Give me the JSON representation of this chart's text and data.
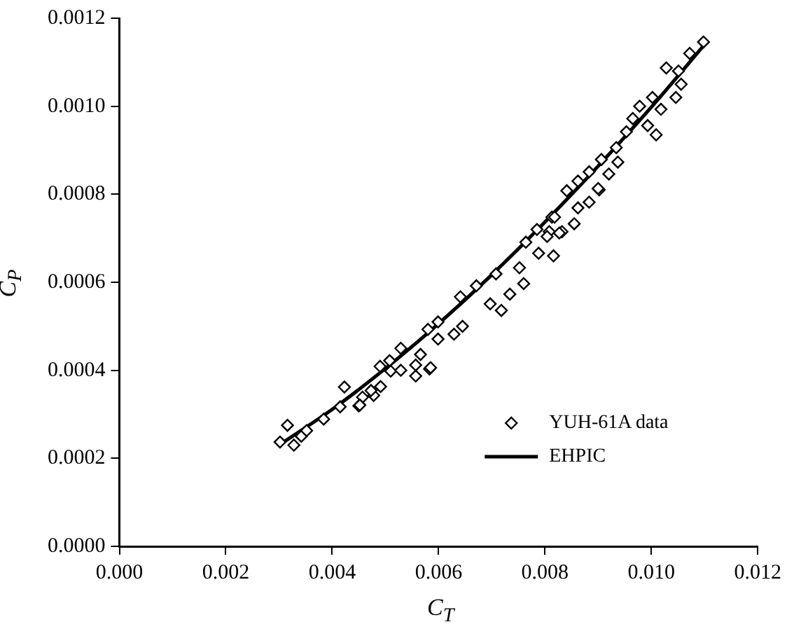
{
  "chart_data": {
    "type": "scatter",
    "xlabel": "C$_{T}$",
    "ylabel": "C$_{P}$",
    "xlim": [
      0,
      0.012
    ],
    "ylim": [
      0,
      0.0012
    ],
    "xticks": [
      {
        "value": 0,
        "label": "0.000"
      },
      {
        "value": 0.002,
        "label": "0.002"
      },
      {
        "value": 0.004,
        "label": "0.004"
      },
      {
        "value": 0.006,
        "label": "0.006"
      },
      {
        "value": 0.008,
        "label": "0.008"
      },
      {
        "value": 0.01,
        "label": "0.010"
      },
      {
        "value": 0.012,
        "label": "0.012"
      }
    ],
    "yticks": [
      {
        "value": 0,
        "label": "0.0000"
      },
      {
        "value": 0.0002,
        "label": "0.0002"
      },
      {
        "value": 0.0004,
        "label": "0.0004"
      },
      {
        "value": 0.0006,
        "label": "0.0006"
      },
      {
        "value": 0.0008,
        "label": "0.0008"
      },
      {
        "value": 0.001,
        "label": "0.0010"
      },
      {
        "value": 0.0012,
        "label": "0.0012"
      }
    ],
    "grid": false,
    "legend": "bottom right",
    "series": [
      {
        "name": "YUH-61A data",
        "type": "scatter",
        "marker": "diamond",
        "color": "#000000",
        "x": [
          0.00302,
          0.00316,
          0.00328,
          0.00342,
          0.00352,
          0.00384,
          0.00415,
          0.00423,
          0.0045,
          0.00457,
          0.00478,
          0.00491,
          0.0049,
          0.00508,
          0.0051,
          0.00452,
          0.00473,
          0.00529,
          0.00529,
          0.00557,
          0.00557,
          0.00583,
          0.0058,
          0.00599,
          0.00599,
          0.00629,
          0.00645,
          0.00641,
          0.00697,
          0.00718,
          0.00734,
          0.00585,
          0.00566,
          0.00671,
          0.00708,
          0.0076,
          0.00752,
          0.00788,
          0.00816,
          0.00764,
          0.00808,
          0.00832,
          0.00855,
          0.00813,
          0.00841,
          0.00862,
          0.00883,
          0.00902,
          0.0092,
          0.00937,
          0.00934,
          0.01009,
          0.01098,
          0.01072,
          0.01028,
          0.01051,
          0.01056,
          0.01046,
          0.01002,
          0.01018,
          0.00978,
          0.00965,
          0.00993,
          0.00953,
          0.00906,
          0.00883,
          0.009,
          0.00862,
          0.00818,
          0.00785,
          0.00827,
          0.00804
        ],
        "values": [
          0.000237,
          0.000275,
          0.00023,
          0.00025,
          0.000263,
          0.000289,
          0.000317,
          0.000362,
          0.000319,
          0.000339,
          0.000343,
          0.000363,
          0.000409,
          0.000422,
          0.000398,
          0.000321,
          0.000354,
          0.00045,
          0.0004,
          0.000412,
          0.000387,
          0.000403,
          0.000493,
          0.00051,
          0.000471,
          0.000482,
          0.0005,
          0.000567,
          0.000551,
          0.000536,
          0.000573,
          0.000406,
          0.000436,
          0.000592,
          0.000619,
          0.000597,
          0.000633,
          0.000666,
          0.00066,
          0.000691,
          0.000715,
          0.000715,
          0.000733,
          0.000748,
          0.000808,
          0.00083,
          0.000782,
          0.00081,
          0.000846,
          0.000873,
          0.000906,
          0.000935,
          0.001146,
          0.00112,
          0.001087,
          0.00108,
          0.00105,
          0.00102,
          0.00102,
          0.000993,
          0.001,
          0.000972,
          0.000956,
          0.000942,
          0.000879,
          0.000851,
          0.000813,
          0.000769,
          0.000748,
          0.00072,
          0.000712,
          0.000704
        ]
      },
      {
        "name": "EHPIC",
        "type": "line",
        "marker": "none",
        "line_style": "solid",
        "color": "#000000",
        "x": [
          0.003,
          0.004,
          0.005,
          0.006,
          0.007,
          0.008,
          0.009,
          0.01,
          0.011
        ],
        "values": [
          0.00023,
          0.000311,
          0.000404,
          0.000506,
          0.000617,
          0.000737,
          0.000864,
          0.000998,
          0.00114
        ]
      }
    ]
  }
}
